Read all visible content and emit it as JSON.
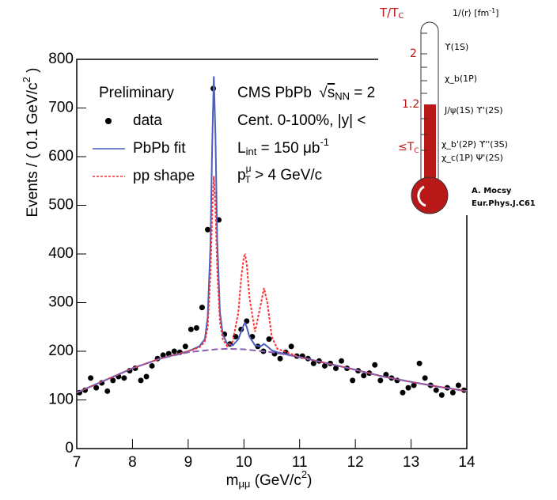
{
  "chart_data": {
    "type": "scatter-fit",
    "xlabel": {
      "main": "m",
      "sub": "μμ",
      "rest": " (GeV/c",
      "sup": "2",
      "end": ")"
    },
    "ylabel": {
      "main": "Events / ( 0.1 GeV/c",
      "sup": "2",
      "end": " )"
    },
    "xlim": [
      7,
      14
    ],
    "xticks": [
      7,
      8,
      9,
      10,
      11,
      12,
      13,
      14
    ],
    "ylim": [
      0,
      800
    ],
    "yticks": [
      0,
      100,
      200,
      300,
      400,
      500,
      600,
      700,
      800
    ],
    "legend": "upper left",
    "legend_title": "Preliminary",
    "annotations": {
      "experiment": {
        "text": "CMS PbPb ",
        "sqrt": "s",
        "sub": "NN",
        "rest": " = 2"
      },
      "centrality": "Cent. 0-100%, |y| <",
      "luminosity": {
        "text": "L",
        "sub": "int",
        "rest": " = 150 μb",
        "sup": "-1"
      },
      "pt_cut": {
        "text": "p",
        "sup": "μ",
        "sub": "T",
        "rest": " > 4 GeV/c"
      }
    },
    "series": [
      {
        "name": "data",
        "style": "points",
        "color": "#000000",
        "x": [
          7.05,
          7.15,
          7.25,
          7.35,
          7.45,
          7.55,
          7.65,
          7.75,
          7.85,
          7.95,
          8.05,
          8.15,
          8.25,
          8.35,
          8.45,
          8.55,
          8.65,
          8.75,
          8.85,
          8.95,
          9.05,
          9.15,
          9.25,
          9.35,
          9.45,
          9.55,
          9.65,
          9.75,
          9.85,
          9.95,
          10.05,
          10.15,
          10.25,
          10.35,
          10.45,
          10.55,
          10.65,
          10.75,
          10.85,
          10.95,
          11.05,
          11.15,
          11.25,
          11.35,
          11.45,
          11.55,
          11.65,
          11.75,
          11.85,
          11.95,
          12.05,
          12.15,
          12.25,
          12.35,
          12.45,
          12.55,
          12.65,
          12.75,
          12.85,
          12.95,
          13.05,
          13.15,
          13.25,
          13.35,
          13.45,
          13.55,
          13.65,
          13.75,
          13.85,
          13.95
        ],
        "values": [
          115,
          120,
          145,
          125,
          135,
          118,
          140,
          148,
          145,
          160,
          165,
          140,
          148,
          170,
          185,
          192,
          195,
          200,
          198,
          210,
          245,
          248,
          290,
          450,
          740,
          470,
          235,
          215,
          230,
          245,
          262,
          230,
          210,
          200,
          225,
          195,
          185,
          198,
          210,
          190,
          190,
          185,
          175,
          180,
          170,
          175,
          165,
          180,
          165,
          140,
          160,
          150,
          155,
          172,
          140,
          152,
          145,
          140,
          115,
          125,
          130,
          175,
          145,
          130,
          120,
          110,
          125,
          115,
          130,
          120
        ]
      },
      {
        "name": "PbPb fit",
        "style": "solid",
        "color": "#4a5fc0",
        "x": [
          7,
          7.5,
          8,
          8.5,
          9,
          9.2,
          9.3,
          9.35,
          9.4,
          9.43,
          9.46,
          9.49,
          9.52,
          9.57,
          9.62,
          9.7,
          9.8,
          9.9,
          9.95,
          10,
          10.02,
          10.05,
          10.1,
          10.2,
          10.3,
          10.36,
          10.42,
          10.5,
          10.6,
          11,
          11.5,
          12,
          12.5,
          13,
          13.5,
          14
        ],
        "values": [
          115,
          140,
          165,
          185,
          200,
          210,
          225,
          270,
          420,
          620,
          765,
          640,
          430,
          280,
          235,
          215,
          212,
          225,
          240,
          255,
          258,
          250,
          230,
          212,
          210,
          215,
          210,
          202,
          198,
          188,
          175,
          162,
          148,
          137,
          127,
          118
        ]
      },
      {
        "name": "pp shape",
        "style": "dotted",
        "color": "#ff3030",
        "x": [
          7,
          7.5,
          8,
          8.5,
          9,
          9.2,
          9.3,
          9.35,
          9.4,
          9.43,
          9.46,
          9.49,
          9.52,
          9.57,
          9.62,
          9.7,
          9.8,
          9.9,
          9.95,
          10,
          10.02,
          10.05,
          10.1,
          10.2,
          10.3,
          10.36,
          10.42,
          10.5,
          10.6,
          11,
          11.5,
          12,
          12.5,
          13,
          13.5,
          14
        ],
        "values": [
          115,
          140,
          165,
          185,
          200,
          208,
          220,
          250,
          360,
          480,
          560,
          490,
          370,
          260,
          225,
          210,
          220,
          280,
          350,
          395,
          398,
          380,
          310,
          240,
          295,
          330,
          300,
          230,
          205,
          188,
          175,
          162,
          148,
          137,
          127,
          118
        ]
      },
      {
        "style": "dashed",
        "color": "#8a5fb0",
        "x": [
          7,
          7.5,
          8,
          8.5,
          9,
          9.5,
          9.7,
          10,
          10.5,
          11,
          11.5,
          12,
          12.5,
          13,
          13.5,
          14
        ],
        "values": [
          115,
          140,
          165,
          185,
          198,
          204,
          205,
          204,
          198,
          188,
          175,
          162,
          148,
          137,
          127,
          118
        ]
      }
    ]
  },
  "inset": {
    "ratio": {
      "text": "T/T",
      "sub": "C"
    },
    "radius": {
      "text": "1/⟨r⟩ [fm",
      "sup": "-1",
      "end": "]"
    },
    "levels": [
      "2",
      "1.2"
    ],
    "below": {
      "text": "≤T",
      "sub": "C"
    },
    "states": [
      "ϒ(1S)",
      "χ_b(1P)",
      "J/ψ(1S) ϒ'(2S)",
      "χ_b'(2P) ϒ''(3S)",
      "χ_c(1P) Ψ'(2S)"
    ],
    "credit": [
      "A. Mocsy",
      "Eur.Phys.J.C61"
    ]
  }
}
